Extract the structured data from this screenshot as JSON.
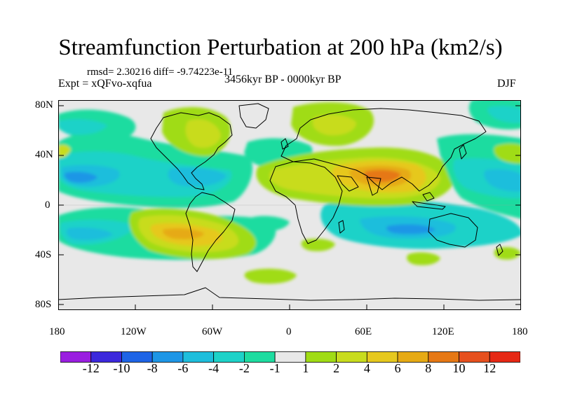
{
  "header": {
    "title": "Streamfunction Perturbation at 200 hPa (km2/s)",
    "stats": "rmsd= 2.30216 diff= -9.74223e-11",
    "experiment": "Expt = xQFvo-xqfua",
    "period": "3456kyr BP - 0000kyr BP",
    "season": "DJF"
  },
  "map": {
    "lat_ticks": [
      "80N",
      "40N",
      "0",
      "40S",
      "80S"
    ],
    "lon_ticks": [
      "180",
      "120W",
      "60W",
      "0",
      "60E",
      "120E",
      "180"
    ],
    "projection": "cylindrical-equidistant",
    "background_color": "#e8e8e8"
  },
  "colorbar": {
    "colors": [
      "#9a1ee0",
      "#3c28dc",
      "#1e64e6",
      "#1e96e6",
      "#1ebedc",
      "#1ed2c8",
      "#1edca0",
      "#e8e8e8",
      "#a0dc14",
      "#c8dc1e",
      "#e6c81e",
      "#e6aa14",
      "#e67814",
      "#e6501e",
      "#e62814"
    ],
    "labels": [
      "-12",
      "-10",
      "-8",
      "-6",
      "-4",
      "-2",
      "-1",
      "1",
      "2",
      "4",
      "6",
      "8",
      "10",
      "12"
    ]
  }
}
